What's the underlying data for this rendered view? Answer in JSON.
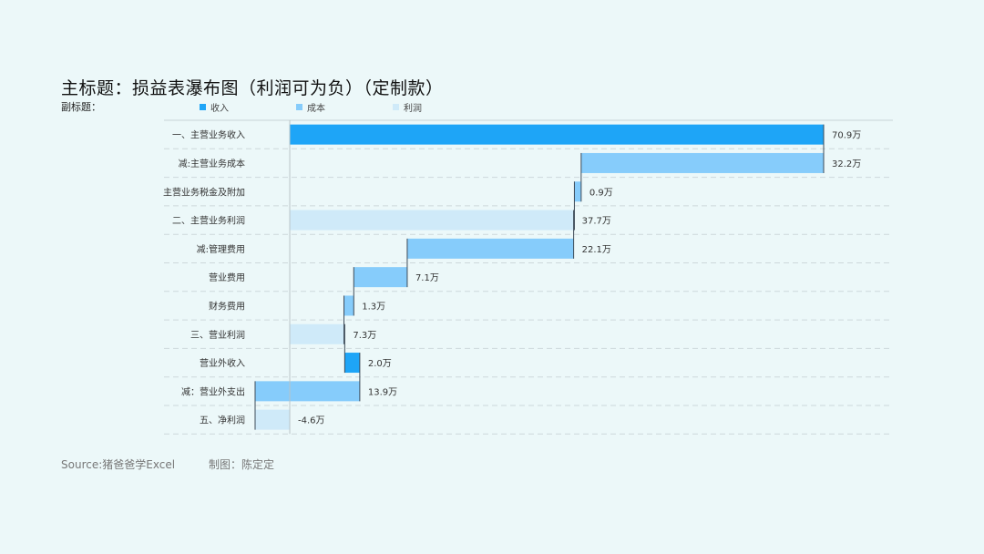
{
  "title": "主标题：损益表瀑布图（利润可为负）（定制款）",
  "subtitle": "副标题：",
  "legend": [
    {
      "label": "收入",
      "color": "#1ea5f7"
    },
    {
      "label": "成本",
      "color": "#86ccfb"
    },
    {
      "label": "利润",
      "color": "#cfeaf9"
    }
  ],
  "source": "Source:猪爸爸学Excel",
  "credit": "制图：陈定定",
  "chart_data": {
    "type": "waterfall",
    "unit": "万",
    "xlim": [
      -4.6,
      70.9
    ],
    "categories": [
      "一、主营业务收入",
      "减:主营业务成本",
      "主营业务税金及附加",
      "二、主营业务利润",
      "减:管理费用",
      "营业费用",
      "财务费用",
      "三、营业利润",
      "营业外收入",
      "减：营业外支出",
      "五、净利润"
    ],
    "bars": [
      {
        "category": "一、主营业务收入",
        "type": "收入",
        "start": 0,
        "end": 70.9,
        "label": "70.9万"
      },
      {
        "category": "减:主营业务成本",
        "type": "成本",
        "start": 38.7,
        "end": 70.9,
        "label": "32.2万"
      },
      {
        "category": "主营业务税金及附加",
        "type": "成本",
        "start": 37.8,
        "end": 38.7,
        "label": "0.9万"
      },
      {
        "category": "二、主营业务利润",
        "type": "利润",
        "start": 0,
        "end": 37.7,
        "label": "37.7万"
      },
      {
        "category": "减:管理费用",
        "type": "成本",
        "start": 15.6,
        "end": 37.7,
        "label": "22.1万"
      },
      {
        "category": "营业费用",
        "type": "成本",
        "start": 8.5,
        "end": 15.6,
        "label": "7.1万"
      },
      {
        "category": "财务费用",
        "type": "成本",
        "start": 7.2,
        "end": 8.5,
        "label": "1.3万"
      },
      {
        "category": "三、营业利润",
        "type": "利润",
        "start": 0,
        "end": 7.3,
        "label": "7.3万"
      },
      {
        "category": "营业外收入",
        "type": "收入",
        "start": 7.3,
        "end": 9.3,
        "label": "2.0万"
      },
      {
        "category": "减：营业外支出",
        "type": "成本",
        "start": -4.6,
        "end": 9.3,
        "label": "13.9万"
      },
      {
        "category": "五、净利润",
        "type": "利润",
        "start": -4.6,
        "end": 0,
        "label": "-4.6万"
      }
    ]
  }
}
